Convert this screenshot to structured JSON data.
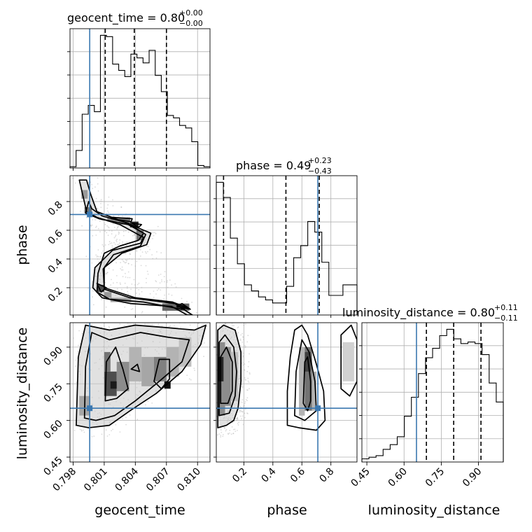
{
  "chart_data": {
    "type": "corner",
    "parameters": [
      "geocent_time",
      "phase",
      "luminosity_distance"
    ],
    "truth_color": "#3b78b0",
    "truths": {
      "geocent_time": 0.7996,
      "phase": 0.71,
      "luminosity_distance": 0.65
    },
    "titles": [
      {
        "param": "geocent_time",
        "text": "geocent_time = 0.80",
        "sup": "+0.00",
        "sub": "−0.00"
      },
      {
        "param": "phase",
        "text": "phase = 0.49",
        "sup": "+0.23",
        "sub": "−0.43"
      },
      {
        "param": "luminosity_distance",
        "text": "luminosity_distance = 0.80",
        "sup": "+0.11",
        "sub": "−0.11"
      }
    ],
    "axis_labels": {
      "x": [
        "geocent_time",
        "phase",
        "luminosity_distance"
      ],
      "y": [
        "phase",
        "luminosity_distance"
      ]
    },
    "ranges": {
      "geocent_time": [
        0.7977,
        0.8112
      ],
      "phase": [
        0.01,
        0.98
      ],
      "luminosity_distance": [
        0.43,
        1.0
      ]
    },
    "ticks": {
      "geocent_time": [
        "0.798",
        "0.801",
        "0.804",
        "0.807",
        "0.810"
      ],
      "phase": [
        "0.2",
        "0.4",
        "0.6",
        "0.8"
      ],
      "luminosity_distance": [
        "0.45",
        "0.60",
        "0.75",
        "0.90"
      ]
    },
    "histograms": {
      "geocent_time": {
        "edges_from": 0.7977,
        "edges_to": 0.8112,
        "counts": [
          1,
          14,
          43,
          50,
          45,
          106,
          105,
          83,
          78,
          73,
          91,
          88,
          84,
          94,
          74,
          61,
          42,
          40,
          34,
          32,
          21,
          2,
          1
        ],
        "quantiles": [
          0.8011,
          0.8039,
          0.807
        ]
      },
      "phase": {
        "edges_from": 0.01,
        "edges_to": 0.98,
        "counts": [
          88,
          78,
          51,
          34,
          20,
          16,
          12,
          10,
          8,
          8,
          19,
          38,
          46,
          62,
          55,
          35,
          13,
          13,
          20,
          20
        ],
        "quantiles": [
          0.06,
          0.49,
          0.72
        ]
      },
      "luminosity_distance": {
        "edges_from": 0.43,
        "edges_to": 1.0,
        "counts": [
          2,
          3,
          4,
          8,
          11,
          16,
          29,
          41,
          56,
          66,
          72,
          80,
          84,
          78,
          75,
          76,
          75,
          68,
          50,
          38
        ],
        "quantiles": [
          0.69,
          0.8,
          0.91
        ]
      }
    },
    "contours_2d": {
      "phase_vs_geocent_time": [
        [
          [
            0.7986,
            0.95
          ],
          [
            0.7993,
            0.73
          ],
          [
            0.8003,
            0.69
          ],
          [
            0.8025,
            0.64
          ],
          [
            0.8048,
            0.55
          ],
          [
            0.8045,
            0.51
          ],
          [
            0.8018,
            0.46
          ],
          [
            0.8001,
            0.34
          ],
          [
            0.7999,
            0.2
          ],
          [
            0.8008,
            0.13
          ],
          [
            0.8035,
            0.09
          ],
          [
            0.8075,
            0.07
          ],
          [
            0.809,
            0.01
          ],
          [
            0.8095,
            0.01
          ],
          [
            0.8078,
            0.09
          ],
          [
            0.8035,
            0.13
          ],
          [
            0.801,
            0.19
          ],
          [
            0.801,
            0.34
          ],
          [
            0.8027,
            0.44
          ],
          [
            0.8051,
            0.5
          ],
          [
            0.8055,
            0.58
          ],
          [
            0.8028,
            0.66
          ],
          [
            0.8003,
            0.73
          ],
          [
            0.7997,
            0.85
          ],
          [
            0.7993,
            0.95
          ]
        ],
        [
          [
            0.7995,
            0.8
          ],
          [
            0.7992,
            0.72
          ],
          [
            0.8005,
            0.68
          ],
          [
            0.8033,
            0.64
          ],
          [
            0.8048,
            0.58
          ],
          [
            0.8043,
            0.53
          ],
          [
            0.8025,
            0.49
          ],
          [
            0.801,
            0.44
          ],
          [
            0.8004,
            0.3
          ],
          [
            0.8003,
            0.17
          ],
          [
            0.8015,
            0.12
          ],
          [
            0.8048,
            0.1
          ],
          [
            0.8085,
            0.05
          ],
          [
            0.809,
            0.06
          ],
          [
            0.8076,
            0.1
          ],
          [
            0.804,
            0.13
          ],
          [
            0.801,
            0.2
          ],
          [
            0.8009,
            0.33
          ],
          [
            0.8019,
            0.43
          ],
          [
            0.8045,
            0.49
          ],
          [
            0.805,
            0.57
          ],
          [
            0.8033,
            0.65
          ],
          [
            0.8008,
            0.7
          ],
          [
            0.7998,
            0.75
          ]
        ],
        [
          [
            0.8017,
            0.68
          ],
          [
            0.8036,
            0.66
          ],
          [
            0.8037,
            0.68
          ],
          [
            0.8018,
            0.69
          ]
        ],
        [
          [
            0.8037,
            0.65
          ],
          [
            0.8043,
            0.62
          ],
          [
            0.8046,
            0.64
          ]
        ],
        [
          [
            0.8003,
            0.23
          ],
          [
            0.8007,
            0.17
          ],
          [
            0.8012,
            0.2
          ]
        ],
        [
          [
            0.808,
            0.07
          ],
          [
            0.8093,
            0.05
          ],
          [
            0.8085,
            0.09
          ]
        ]
      ],
      "luminosity_distance_vs_geocent_time": [
        [
          [
            0.7983,
            0.58
          ],
          [
            0.7985,
            0.86
          ],
          [
            0.7992,
            0.99
          ],
          [
            0.8015,
            0.97
          ],
          [
            0.804,
            0.99
          ],
          [
            0.807,
            0.98
          ],
          [
            0.8097,
            0.97
          ],
          [
            0.8108,
            0.99
          ],
          [
            0.8103,
            0.91
          ],
          [
            0.8085,
            0.8
          ],
          [
            0.806,
            0.71
          ],
          [
            0.8035,
            0.64
          ],
          [
            0.8015,
            0.58
          ],
          [
            0.7995,
            0.57
          ]
        ],
        [
          [
            0.7991,
            0.61
          ],
          [
            0.7992,
            0.82
          ],
          [
            0.7998,
            0.96
          ],
          [
            0.8015,
            0.93
          ],
          [
            0.8045,
            0.96
          ],
          [
            0.8072,
            0.94
          ],
          [
            0.8092,
            0.93
          ],
          [
            0.8085,
            0.84
          ],
          [
            0.8063,
            0.76
          ],
          [
            0.804,
            0.68
          ],
          [
            0.802,
            0.62
          ],
          [
            0.8002,
            0.6
          ]
        ],
        [
          [
            0.8011,
            0.68
          ],
          [
            0.8012,
            0.84
          ],
          [
            0.8021,
            0.9
          ],
          [
            0.8028,
            0.81
          ],
          [
            0.8033,
            0.73
          ],
          [
            0.8022,
            0.69
          ]
        ],
        [
          [
            0.8058,
            0.76
          ],
          [
            0.8063,
            0.85
          ],
          [
            0.8073,
            0.85
          ],
          [
            0.8073,
            0.77
          ],
          [
            0.8065,
            0.73
          ]
        ],
        [
          [
            0.8036,
            0.81
          ],
          [
            0.8044,
            0.8
          ],
          [
            0.8042,
            0.83
          ]
        ]
      ],
      "luminosity_distance_vs_phase": [
        [
          [
            0.02,
            0.57
          ],
          [
            0.02,
            0.97
          ],
          [
            0.06,
            0.99
          ],
          [
            0.14,
            0.97
          ],
          [
            0.18,
            0.88
          ],
          [
            0.18,
            0.76
          ],
          [
            0.16,
            0.65
          ],
          [
            0.13,
            0.6
          ],
          [
            0.08,
            0.58
          ]
        ],
        [
          [
            0.03,
            0.62
          ],
          [
            0.03,
            0.92
          ],
          [
            0.07,
            0.95
          ],
          [
            0.13,
            0.9
          ],
          [
            0.15,
            0.8
          ],
          [
            0.14,
            0.7
          ],
          [
            0.1,
            0.63
          ]
        ],
        [
          [
            0.04,
            0.67
          ],
          [
            0.04,
            0.86
          ],
          [
            0.08,
            0.9
          ],
          [
            0.12,
            0.84
          ],
          [
            0.12,
            0.72
          ],
          [
            0.09,
            0.67
          ]
        ],
        [
          [
            0.5,
            0.58
          ],
          [
            0.5,
            0.72
          ],
          [
            0.52,
            0.86
          ],
          [
            0.55,
            0.97
          ],
          [
            0.6,
            0.99
          ],
          [
            0.64,
            0.95
          ],
          [
            0.7,
            0.83
          ],
          [
            0.75,
            0.72
          ],
          [
            0.76,
            0.6
          ],
          [
            0.7,
            0.56
          ],
          [
            0.58,
            0.57
          ]
        ],
        [
          [
            0.55,
            0.62
          ],
          [
            0.56,
            0.8
          ],
          [
            0.6,
            0.93
          ],
          [
            0.65,
            0.88
          ],
          [
            0.69,
            0.76
          ],
          [
            0.7,
            0.64
          ],
          [
            0.62,
            0.6
          ]
        ],
        [
          [
            0.61,
            0.67
          ],
          [
            0.62,
            0.84
          ],
          [
            0.64,
            0.86
          ],
          [
            0.66,
            0.76
          ],
          [
            0.66,
            0.68
          ],
          [
            0.64,
            0.64
          ]
        ],
        [
          [
            0.87,
            0.73
          ],
          [
            0.87,
            0.95
          ],
          [
            0.94,
            0.99
          ],
          [
            0.98,
            0.93
          ],
          [
            0.98,
            0.76
          ],
          [
            0.93,
            0.7
          ]
        ]
      ]
    },
    "density_boxes_2d": {
      "phase_vs_geocent_time": [
        [
          0.7991,
          0.7998,
          0.72,
          0.76,
          0.55
        ],
        [
          0.7988,
          0.7994,
          0.82,
          0.88,
          0.4
        ],
        [
          0.8013,
          0.8024,
          0.66,
          0.69,
          0.45
        ],
        [
          0.8024,
          0.8035,
          0.64,
          0.69,
          0.5
        ],
        [
          0.8035,
          0.8043,
          0.62,
          0.66,
          0.85
        ],
        [
          0.8041,
          0.8048,
          0.53,
          0.6,
          0.55
        ],
        [
          0.8003,
          0.801,
          0.17,
          0.22,
          0.7
        ],
        [
          0.801,
          0.8017,
          0.13,
          0.17,
          0.4
        ],
        [
          0.8016,
          0.8036,
          0.1,
          0.13,
          0.35
        ],
        [
          0.8066,
          0.8092,
          0.04,
          0.09,
          0.6
        ],
        [
          0.808,
          0.8088,
          0.06,
          0.08,
          0.9
        ]
      ],
      "luminosity_distance_vs_geocent_time": [
        [
          0.7986,
          0.7996,
          0.62,
          0.7,
          0.35
        ],
        [
          0.801,
          0.8022,
          0.7,
          0.8,
          0.7
        ],
        [
          0.801,
          0.8016,
          0.8,
          0.88,
          0.55
        ],
        [
          0.8022,
          0.8034,
          0.72,
          0.84,
          0.45
        ],
        [
          0.8034,
          0.8046,
          0.76,
          0.9,
          0.3
        ],
        [
          0.8046,
          0.8058,
          0.74,
          0.86,
          0.35
        ],
        [
          0.8058,
          0.807,
          0.76,
          0.86,
          0.5
        ],
        [
          0.807,
          0.8082,
          0.78,
          0.9,
          0.3
        ],
        [
          0.8068,
          0.8074,
          0.73,
          0.76,
          0.95
        ],
        [
          0.8016,
          0.8022,
          0.73,
          0.76,
          0.9
        ],
        [
          0.8082,
          0.8094,
          0.82,
          0.94,
          0.25
        ]
      ],
      "luminosity_distance_vs_phase": [
        [
          0.02,
          0.07,
          0.62,
          0.92,
          0.45
        ],
        [
          0.02,
          0.06,
          0.76,
          0.86,
          0.85
        ],
        [
          0.06,
          0.11,
          0.66,
          0.9,
          0.45
        ],
        [
          0.11,
          0.16,
          0.68,
          0.88,
          0.25
        ],
        [
          0.58,
          0.62,
          0.62,
          0.9,
          0.3
        ],
        [
          0.62,
          0.67,
          0.64,
          0.9,
          0.55
        ],
        [
          0.62,
          0.66,
          0.8,
          0.88,
          0.75
        ],
        [
          0.67,
          0.7,
          0.64,
          0.8,
          0.3
        ],
        [
          0.88,
          0.96,
          0.76,
          0.92,
          0.18
        ]
      ]
    },
    "scatter_density": {
      "samples_per_panel": 1600,
      "color": "#b0b0b0"
    }
  }
}
